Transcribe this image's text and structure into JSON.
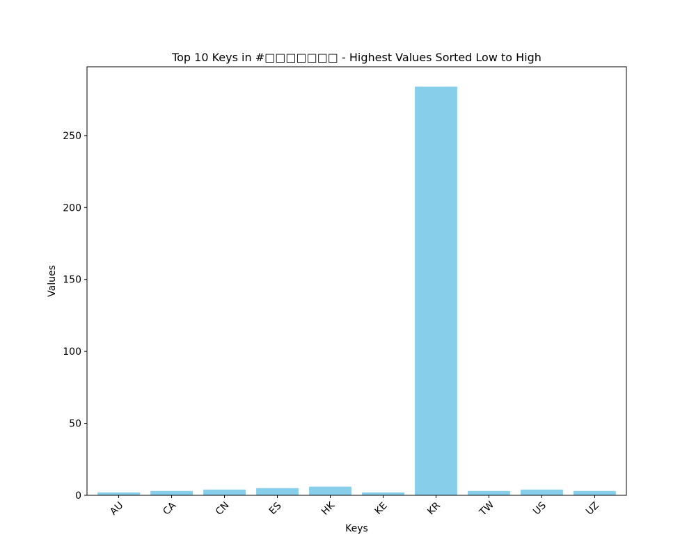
{
  "chart_data": {
    "type": "bar",
    "title": "Top 10 Keys in #□□□□□□□ - Highest Values Sorted Low to High",
    "xlabel": "Keys",
    "ylabel": "Values",
    "categories": [
      "AU",
      "CA",
      "CN",
      "ES",
      "HK",
      "KE",
      "KR",
      "TW",
      "US",
      "UZ"
    ],
    "values": [
      2,
      3,
      4,
      5,
      6,
      2,
      284,
      3,
      4,
      3
    ],
    "ylim": [
      0,
      297.8
    ],
    "yticks": [
      0,
      50,
      100,
      150,
      200,
      250
    ],
    "bar_color": "#87CEEB",
    "grid": false,
    "xtick_rotation_deg": 45
  }
}
